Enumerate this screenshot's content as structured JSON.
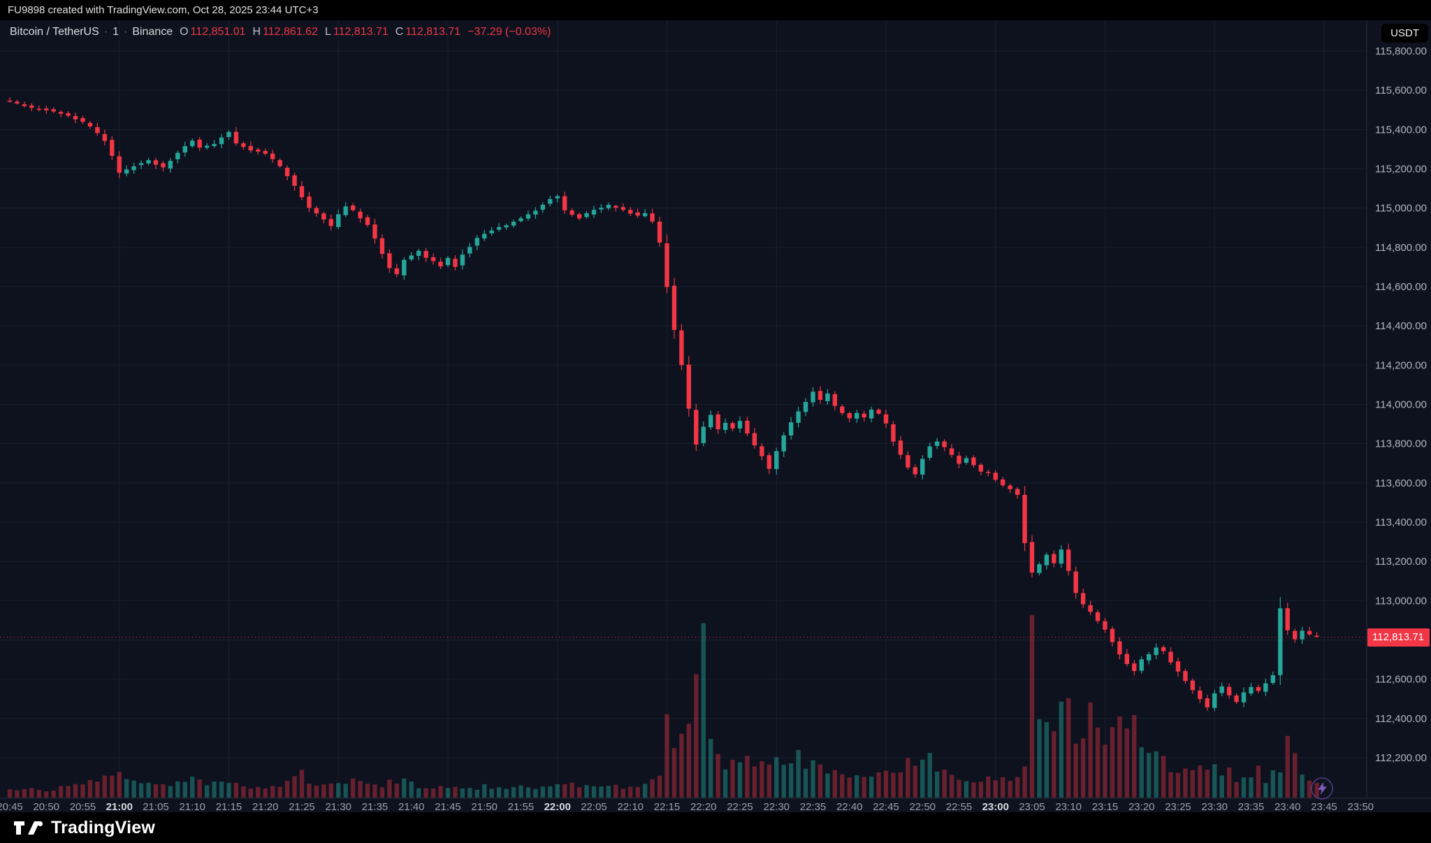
{
  "attribution": "FU9898 created with TradingView.com, Oct 28, 2025 23:44 UTC+3",
  "legend": {
    "symbol": "Bitcoin / TetherUS",
    "separator": "·",
    "interval": "1",
    "exchange": "Binance",
    "o_label": "O",
    "o": "112,851.01",
    "h_label": "H",
    "h": "112,861.62",
    "l_label": "L",
    "l": "112,813.71",
    "c_label": "C",
    "c": "112,813.71",
    "change": "−37.29 (−0.03%)"
  },
  "currency_button": "USDT",
  "price_tag": "112,813.71",
  "footer": {
    "brand": "TradingView"
  },
  "chart_data": {
    "type": "candlestick",
    "title": "Bitcoin / TetherUS · 1 · Binance",
    "interval_minutes": 1,
    "last_price": 112813.71,
    "ohlc_last": {
      "open": 112851.01,
      "high": 112861.62,
      "low": 112813.71,
      "close": 112813.71,
      "change": -37.29,
      "change_pct": -0.03
    },
    "y_axis": {
      "min": 112200,
      "max": 115800,
      "step": 200
    },
    "x_axis": {
      "tick_interval_min": 5,
      "labels": [
        "20:45",
        "20:50",
        "20:55",
        "21:00",
        "21:05",
        "21:10",
        "21:15",
        "21:20",
        "21:25",
        "21:30",
        "21:35",
        "21:40",
        "21:45",
        "21:50",
        "21:55",
        "22:00",
        "22:05",
        "22:10",
        "22:15",
        "22:20",
        "22:25",
        "22:30",
        "22:35",
        "22:40",
        "22:45",
        "22:50",
        "22:55",
        "23:00",
        "23:05",
        "23:10",
        "23:15",
        "23:20",
        "23:25",
        "23:30",
        "23:35",
        "23:40",
        "23:45",
        "23:50"
      ]
    },
    "price_keyframes": [
      [
        0,
        115550
      ],
      [
        2,
        115530
      ],
      [
        4,
        115510
      ],
      [
        6,
        115500
      ],
      [
        8,
        115485
      ],
      [
        10,
        115455
      ],
      [
        12,
        115415
      ],
      [
        14,
        115345
      ],
      [
        15,
        115265
      ],
      [
        16,
        115180
      ],
      [
        18,
        115215
      ],
      [
        20,
        115245
      ],
      [
        22,
        115205
      ],
      [
        24,
        115285
      ],
      [
        26,
        115345
      ],
      [
        27,
        115305
      ],
      [
        29,
        115325
      ],
      [
        31,
        115390
      ],
      [
        32,
        115330
      ],
      [
        34,
        115295
      ],
      [
        36,
        115280
      ],
      [
        38,
        115210
      ],
      [
        40,
        115115
      ],
      [
        42,
        115000
      ],
      [
        44,
        114940
      ],
      [
        45,
        114905
      ],
      [
        46,
        114965
      ],
      [
        47,
        115010
      ],
      [
        48,
        114985
      ],
      [
        50,
        114915
      ],
      [
        51,
        114845
      ],
      [
        53,
        114690
      ],
      [
        54,
        114660
      ],
      [
        55,
        114735
      ],
      [
        57,
        114785
      ],
      [
        58,
        114750
      ],
      [
        60,
        114705
      ],
      [
        61,
        114745
      ],
      [
        62,
        114705
      ],
      [
        63,
        114765
      ],
      [
        65,
        114845
      ],
      [
        67,
        114890
      ],
      [
        69,
        114915
      ],
      [
        71,
        114950
      ],
      [
        73,
        114990
      ],
      [
        75,
        115045
      ],
      [
        76,
        115065
      ],
      [
        77,
        114990
      ],
      [
        79,
        114950
      ],
      [
        81,
        114990
      ],
      [
        83,
        115015
      ],
      [
        85,
        114990
      ],
      [
        87,
        114960
      ],
      [
        88,
        114975
      ],
      [
        89,
        114930
      ],
      [
        90,
        114820
      ],
      [
        91,
        114600
      ],
      [
        92,
        114380
      ],
      [
        93,
        114200
      ],
      [
        94,
        113975
      ],
      [
        95,
        113800
      ],
      [
        96,
        113885
      ],
      [
        97,
        113950
      ],
      [
        98,
        113870
      ],
      [
        99,
        113905
      ],
      [
        100,
        113880
      ],
      [
        101,
        113915
      ],
      [
        102,
        113850
      ],
      [
        103,
        113790
      ],
      [
        104,
        113740
      ],
      [
        105,
        113675
      ],
      [
        106,
        113760
      ],
      [
        107,
        113845
      ],
      [
        108,
        113905
      ],
      [
        109,
        113960
      ],
      [
        110,
        114015
      ],
      [
        111,
        114065
      ],
      [
        112,
        114020
      ],
      [
        113,
        114055
      ],
      [
        114,
        113990
      ],
      [
        115,
        113955
      ],
      [
        116,
        113930
      ],
      [
        117,
        113955
      ],
      [
        118,
        113930
      ],
      [
        119,
        113970
      ],
      [
        120,
        113950
      ],
      [
        121,
        113900
      ],
      [
        122,
        113815
      ],
      [
        123,
        113740
      ],
      [
        124,
        113680
      ],
      [
        125,
        113640
      ],
      [
        126,
        113725
      ],
      [
        127,
        113790
      ],
      [
        128,
        113815
      ],
      [
        129,
        113780
      ],
      [
        130,
        113740
      ],
      [
        131,
        113700
      ],
      [
        132,
        113725
      ],
      [
        133,
        113690
      ],
      [
        134,
        113660
      ],
      [
        135,
        113650
      ],
      [
        136,
        113620
      ],
      [
        137,
        113590
      ],
      [
        138,
        113565
      ],
      [
        139,
        113540
      ],
      [
        140,
        113295
      ],
      [
        141,
        113140
      ],
      [
        142,
        113185
      ],
      [
        143,
        113235
      ],
      [
        144,
        113190
      ],
      [
        145,
        113260
      ],
      [
        146,
        113150
      ],
      [
        147,
        113040
      ],
      [
        148,
        112980
      ],
      [
        149,
        112940
      ],
      [
        150,
        112900
      ],
      [
        151,
        112855
      ],
      [
        152,
        112790
      ],
      [
        153,
        112730
      ],
      [
        154,
        112680
      ],
      [
        155,
        112640
      ],
      [
        156,
        112700
      ],
      [
        157,
        112725
      ],
      [
        158,
        112760
      ],
      [
        159,
        112740
      ],
      [
        160,
        112690
      ],
      [
        161,
        112640
      ],
      [
        162,
        112590
      ],
      [
        163,
        112540
      ],
      [
        164,
        112500
      ],
      [
        165,
        112455
      ],
      [
        166,
        112530
      ],
      [
        167,
        112560
      ],
      [
        168,
        112520
      ],
      [
        169,
        112480
      ],
      [
        170,
        112530
      ],
      [
        171,
        112560
      ],
      [
        172,
        112540
      ],
      [
        173,
        112580
      ],
      [
        174,
        112620
      ],
      [
        175,
        112960
      ],
      [
        176,
        112850
      ],
      [
        177,
        112800
      ],
      [
        178,
        112845
      ],
      [
        179,
        112825
      ],
      [
        180,
        112813.71
      ]
    ],
    "volume_keyframes": [
      [
        0,
        0.05
      ],
      [
        5,
        0.04
      ],
      [
        10,
        0.07
      ],
      [
        13,
        0.1
      ],
      [
        15,
        0.13
      ],
      [
        17,
        0.08
      ],
      [
        20,
        0.06
      ],
      [
        25,
        0.09
      ],
      [
        28,
        0.07
      ],
      [
        30,
        0.08
      ],
      [
        33,
        0.06
      ],
      [
        36,
        0.05
      ],
      [
        38,
        0.08
      ],
      [
        40,
        0.16
      ],
      [
        41,
        0.1
      ],
      [
        43,
        0.07
      ],
      [
        45,
        0.08
      ],
      [
        47,
        0.09
      ],
      [
        50,
        0.06
      ],
      [
        53,
        0.1
      ],
      [
        55,
        0.07
      ],
      [
        58,
        0.05
      ],
      [
        60,
        0.06
      ],
      [
        63,
        0.05
      ],
      [
        65,
        0.06
      ],
      [
        68,
        0.05
      ],
      [
        70,
        0.06
      ],
      [
        73,
        0.05
      ],
      [
        75,
        0.08
      ],
      [
        78,
        0.06
      ],
      [
        80,
        0.05
      ],
      [
        83,
        0.06
      ],
      [
        85,
        0.05
      ],
      [
        87,
        0.07
      ],
      [
        89,
        0.1
      ],
      [
        90,
        0.45
      ],
      [
        91,
        0.25
      ],
      [
        92,
        0.3
      ],
      [
        93,
        0.42
      ],
      [
        94,
        0.6
      ],
      [
        95,
        0.9
      ],
      [
        96,
        0.4
      ],
      [
        97,
        0.22
      ],
      [
        98,
        0.18
      ],
      [
        99,
        0.25
      ],
      [
        100,
        0.2
      ],
      [
        101,
        0.3
      ],
      [
        102,
        0.18
      ],
      [
        103,
        0.22
      ],
      [
        104,
        0.16
      ],
      [
        105,
        0.28
      ],
      [
        106,
        0.2
      ],
      [
        107,
        0.15
      ],
      [
        108,
        0.25
      ],
      [
        109,
        0.18
      ],
      [
        110,
        0.22
      ],
      [
        111,
        0.15
      ],
      [
        112,
        0.12
      ],
      [
        113,
        0.15
      ],
      [
        114,
        0.12
      ],
      [
        115,
        0.14
      ],
      [
        117,
        0.1
      ],
      [
        119,
        0.12
      ],
      [
        121,
        0.15
      ],
      [
        123,
        0.18
      ],
      [
        125,
        0.25
      ],
      [
        126,
        0.2
      ],
      [
        127,
        0.15
      ],
      [
        129,
        0.12
      ],
      [
        131,
        0.1
      ],
      [
        133,
        0.09
      ],
      [
        135,
        0.12
      ],
      [
        137,
        0.1
      ],
      [
        139,
        0.15
      ],
      [
        140,
        1.0
      ],
      [
        141,
        0.55
      ],
      [
        142,
        0.38
      ],
      [
        143,
        0.3
      ],
      [
        144,
        0.45
      ],
      [
        145,
        0.5
      ],
      [
        146,
        0.35
      ],
      [
        147,
        0.3
      ],
      [
        148,
        0.55
      ],
      [
        149,
        0.4
      ],
      [
        150,
        0.3
      ],
      [
        151,
        0.45
      ],
      [
        152,
        0.35
      ],
      [
        153,
        0.3
      ],
      [
        154,
        0.4
      ],
      [
        155,
        0.28
      ],
      [
        156,
        0.22
      ],
      [
        157,
        0.28
      ],
      [
        158,
        0.18
      ],
      [
        159,
        0.15
      ],
      [
        160,
        0.18
      ],
      [
        161,
        0.15
      ],
      [
        162,
        0.12
      ],
      [
        163,
        0.18
      ],
      [
        164,
        0.14
      ],
      [
        165,
        0.16
      ],
      [
        166,
        0.12
      ],
      [
        167,
        0.15
      ],
      [
        168,
        0.1
      ],
      [
        169,
        0.12
      ],
      [
        170,
        0.1
      ],
      [
        171,
        0.14
      ],
      [
        172,
        0.1
      ],
      [
        173,
        0.12
      ],
      [
        174,
        0.15
      ],
      [
        175,
        0.35
      ],
      [
        176,
        0.2
      ],
      [
        177,
        0.1
      ],
      [
        178,
        0.08
      ],
      [
        179,
        0.1
      ]
    ],
    "colors": {
      "up": "#26a69a",
      "down": "#f23645",
      "volume_up": "rgba(38,166,154,0.45)",
      "volume_down": "rgba(242,54,69,0.40)",
      "grid": "rgba(130,150,190,0.10)",
      "axis_line": "#2a2e39",
      "axis_text": "#b2b5be",
      "axis_text_bright": "#d6d9e0",
      "bg": "#0d121e",
      "accent_red": "#f23645",
      "bolt": "#8a63d2"
    }
  }
}
